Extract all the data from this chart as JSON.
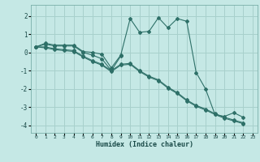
{
  "xlabel": "Humidex (Indice chaleur)",
  "background_color": "#c5e8e5",
  "grid_color": "#a8d0cc",
  "line_color": "#2e7068",
  "xlim": [
    -0.5,
    23.5
  ],
  "ylim": [
    -4.4,
    2.6
  ],
  "yticks": [
    -4,
    -3,
    -2,
    -1,
    0,
    1,
    2
  ],
  "xticks": [
    0,
    1,
    2,
    3,
    4,
    5,
    6,
    7,
    8,
    9,
    10,
    11,
    12,
    13,
    14,
    15,
    16,
    17,
    18,
    19,
    20,
    21,
    22,
    23
  ],
  "series": [
    [
      0.3,
      0.5,
      0.4,
      0.4,
      0.4,
      0.05,
      0.0,
      -0.1,
      -0.85,
      -0.15,
      1.85,
      1.1,
      1.15,
      1.9,
      1.35,
      1.85,
      1.7,
      -1.1,
      -2.0,
      -3.4,
      -3.5,
      -3.3,
      -3.55,
      null
    ],
    [
      0.3,
      0.45,
      0.35,
      0.35,
      0.35,
      0.0,
      -0.15,
      -0.35,
      -1.0,
      -0.2,
      null,
      null,
      null,
      null,
      null,
      null,
      null,
      null,
      null,
      null,
      null,
      null,
      null,
      null
    ],
    [
      0.3,
      0.3,
      0.2,
      0.15,
      0.1,
      -0.2,
      -0.45,
      -0.65,
      -1.0,
      -0.65,
      -0.6,
      -1.0,
      -1.3,
      -1.5,
      -1.9,
      -2.2,
      -2.6,
      -2.9,
      -3.1,
      -3.35,
      -3.55,
      -3.7,
      -3.85,
      null
    ],
    [
      0.3,
      0.25,
      0.15,
      0.1,
      0.05,
      -0.25,
      -0.5,
      -0.7,
      -1.05,
      -0.7,
      -0.65,
      -1.05,
      -1.35,
      -1.55,
      -1.95,
      -2.25,
      -2.65,
      -2.95,
      -3.15,
      -3.4,
      -3.6,
      -3.75,
      -3.9,
      null
    ]
  ]
}
